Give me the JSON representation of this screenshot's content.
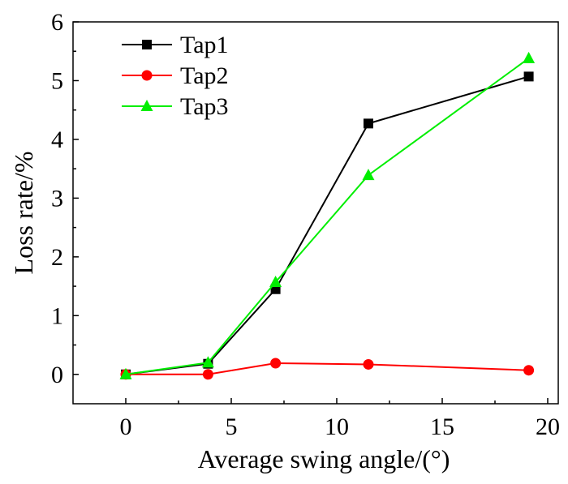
{
  "chart_data": {
    "type": "line",
    "title": "",
    "xlabel": "Average swing angle/(°)",
    "ylabel": "Loss rate/%",
    "xlim": [
      -2.5,
      20.5
    ],
    "ylim": [
      -0.5,
      6
    ],
    "xticks": [
      0,
      5,
      10,
      15,
      20
    ],
    "yticks": [
      0,
      1,
      2,
      3,
      4,
      5,
      6
    ],
    "grid": false,
    "legend_position": "top-left",
    "x": [
      0,
      3.9,
      7.1,
      11.5,
      19.1
    ],
    "series": [
      {
        "name": "Tap1",
        "color": "#000000",
        "marker": "square",
        "values": [
          0,
          0.18,
          1.45,
          4.27,
          5.07
        ]
      },
      {
        "name": "Tap2",
        "color": "#ff0000",
        "marker": "circle",
        "values": [
          0,
          0,
          0.19,
          0.17,
          0.07
        ]
      },
      {
        "name": "Tap3",
        "color": "#00ee00",
        "marker": "triangle",
        "values": [
          0,
          0.2,
          1.57,
          3.39,
          5.38
        ]
      }
    ]
  }
}
